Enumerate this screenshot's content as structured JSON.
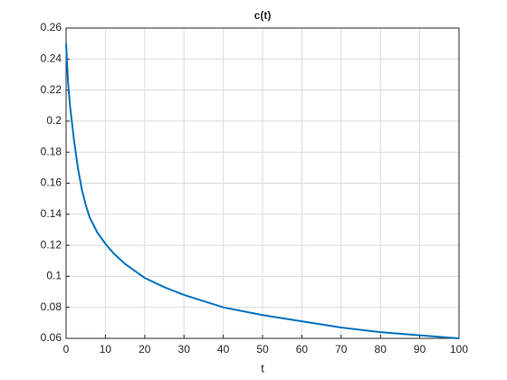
{
  "chart_data": {
    "type": "line",
    "title": "c(t)",
    "x_label": "t",
    "x": [
      0,
      0.5,
      1,
      2,
      3,
      4,
      5,
      6,
      8,
      10,
      12,
      15,
      20,
      25,
      30,
      35,
      40,
      50,
      60,
      70,
      80,
      90,
      100
    ],
    "series": [
      {
        "name": "c(t)",
        "color": "#0072bd",
        "values": [
          0.25,
          0.225,
          0.21,
          0.188,
          0.17,
          0.156,
          0.146,
          0.138,
          0.128,
          0.121,
          0.115,
          0.108,
          0.099,
          0.093,
          0.088,
          0.084,
          0.08,
          0.075,
          0.071,
          0.067,
          0.064,
          0.062,
          0.06
        ]
      }
    ],
    "xlim": [
      0,
      100
    ],
    "xticks": [
      0,
      10,
      20,
      30,
      40,
      50,
      60,
      70,
      80,
      90,
      100
    ],
    "ylim": [
      0.06,
      0.26
    ],
    "yticks": [
      0.06,
      0.08,
      0.1,
      0.12,
      0.14,
      0.16,
      0.18,
      0.2,
      0.22,
      0.24,
      0.26
    ],
    "grid": true
  }
}
